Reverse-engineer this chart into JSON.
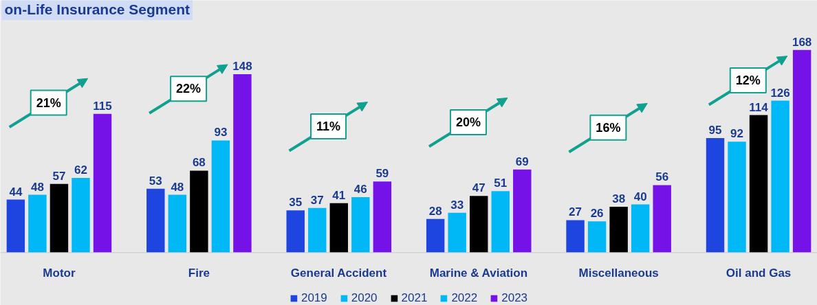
{
  "chart_data": {
    "type": "bar",
    "title": "on-Life Insurance Segment",
    "categories": [
      "Motor",
      "Fire",
      "General Accident",
      "Marine & Aviation",
      "Miscellaneous",
      "Oil and Gas"
    ],
    "series": [
      {
        "name": "2019",
        "color": "#1f45e0",
        "values": [
          44,
          53,
          35,
          28,
          27,
          95
        ]
      },
      {
        "name": "2020",
        "color": "#00b8f5",
        "values": [
          48,
          48,
          37,
          33,
          26,
          92
        ]
      },
      {
        "name": "2021",
        "color": "#000000",
        "values": [
          57,
          68,
          41,
          47,
          38,
          114
        ]
      },
      {
        "name": "2022",
        "color": "#00b8f5",
        "values": [
          62,
          93,
          46,
          51,
          40,
          126
        ]
      },
      {
        "name": "2023",
        "color": "#7512e8",
        "values": [
          115,
          148,
          59,
          69,
          56,
          168
        ]
      }
    ],
    "data_labels": true,
    "legend": "bottom",
    "annotations": [
      "21%",
      "22%",
      "11%",
      "20%",
      "16%",
      "12%"
    ]
  }
}
